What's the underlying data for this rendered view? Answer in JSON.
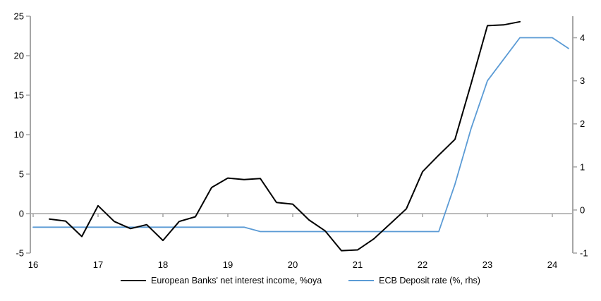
{
  "chart_data": {
    "type": "line",
    "title": "",
    "x_axis": {
      "tick_labels": [
        "16",
        "17",
        "18",
        "19",
        "20",
        "21",
        "22",
        "23",
        "24"
      ],
      "ticks": [
        16,
        17,
        18,
        19,
        20,
        21,
        22,
        23,
        24
      ],
      "min": 15.96,
      "max": 24.32
    },
    "left_axis": {
      "tick_labels": [
        "25",
        "20",
        "15",
        "10",
        "5",
        "0",
        "-5"
      ],
      "ticks": [
        25,
        20,
        15,
        10,
        5,
        0,
        -5
      ],
      "min": -5,
      "max": 25
    },
    "right_axis": {
      "tick_labels": [
        "4",
        "3",
        "2",
        "1",
        "0",
        "-1"
      ],
      "ticks": [
        4,
        3,
        2,
        1,
        0,
        -1
      ],
      "min": -1,
      "max": 4.5
    },
    "grid": false,
    "zero_line": true,
    "legend_position": "bottom",
    "series": [
      {
        "name": "European Banks' net interest income, %oya",
        "axis": "left",
        "color": "#000000",
        "points": [
          [
            16.25,
            -0.7
          ],
          [
            16.5,
            -0.95
          ],
          [
            16.75,
            -2.9
          ],
          [
            17.0,
            1.0
          ],
          [
            17.25,
            -1.0
          ],
          [
            17.5,
            -1.9
          ],
          [
            17.75,
            -1.4
          ],
          [
            18.0,
            -3.4
          ],
          [
            18.25,
            -1.0
          ],
          [
            18.5,
            -0.4
          ],
          [
            18.75,
            3.3
          ],
          [
            19.0,
            4.5
          ],
          [
            19.25,
            4.3
          ],
          [
            19.5,
            4.45
          ],
          [
            19.75,
            1.4
          ],
          [
            20.0,
            1.2
          ],
          [
            20.25,
            -0.8
          ],
          [
            20.5,
            -2.2
          ],
          [
            20.75,
            -4.7
          ],
          [
            21.0,
            -4.6
          ],
          [
            21.25,
            -3.2
          ],
          [
            21.5,
            -1.3
          ],
          [
            21.75,
            0.6
          ],
          [
            22.0,
            5.3
          ],
          [
            22.25,
            7.4
          ],
          [
            22.5,
            9.4
          ],
          [
            22.75,
            16.5
          ],
          [
            23.0,
            23.8
          ],
          [
            23.25,
            23.9
          ],
          [
            23.5,
            24.3
          ]
        ]
      },
      {
        "name": "ECB Deposit rate (%, rhs)",
        "axis": "right",
        "color": "#5B9BD5",
        "points": [
          [
            16.0,
            -0.4
          ],
          [
            16.25,
            -0.4
          ],
          [
            16.5,
            -0.4
          ],
          [
            16.75,
            -0.4
          ],
          [
            17.0,
            -0.4
          ],
          [
            17.25,
            -0.4
          ],
          [
            17.5,
            -0.4
          ],
          [
            17.75,
            -0.4
          ],
          [
            18.0,
            -0.4
          ],
          [
            18.25,
            -0.4
          ],
          [
            18.5,
            -0.4
          ],
          [
            18.75,
            -0.4
          ],
          [
            19.0,
            -0.4
          ],
          [
            19.25,
            -0.4
          ],
          [
            19.5,
            -0.5
          ],
          [
            19.75,
            -0.5
          ],
          [
            20.0,
            -0.5
          ],
          [
            20.25,
            -0.5
          ],
          [
            20.5,
            -0.5
          ],
          [
            20.75,
            -0.5
          ],
          [
            21.0,
            -0.5
          ],
          [
            21.25,
            -0.5
          ],
          [
            21.5,
            -0.5
          ],
          [
            21.75,
            -0.5
          ],
          [
            22.0,
            -0.5
          ],
          [
            22.25,
            -0.5
          ],
          [
            22.5,
            0.6
          ],
          [
            22.75,
            1.9
          ],
          [
            23.0,
            3.0
          ],
          [
            23.25,
            3.5
          ],
          [
            23.5,
            4.0
          ],
          [
            23.75,
            4.0
          ],
          [
            24.0,
            4.0
          ],
          [
            24.25,
            3.75
          ]
        ]
      }
    ]
  },
  "legend": {
    "items": [
      {
        "label": "European Banks' net interest income, %oya",
        "color": "#000000"
      },
      {
        "label": "ECB Deposit rate (%, rhs)",
        "color": "#5B9BD5"
      }
    ]
  },
  "colors": {
    "axis": "#A6A6A6",
    "background": "#FFFFFF",
    "text": "#000000",
    "net_interest_line": "#000000",
    "deposit_rate_line": "#5B9BD5"
  }
}
